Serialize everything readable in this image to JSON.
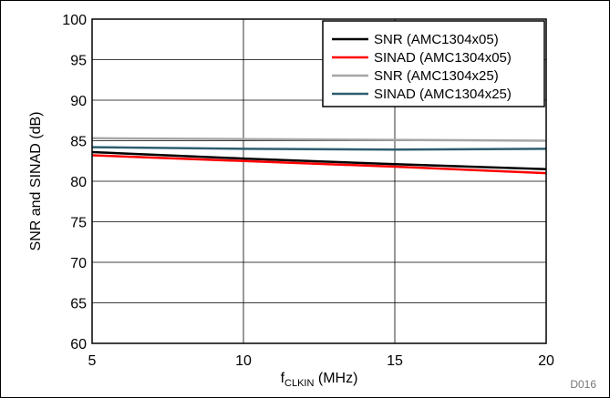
{
  "chart_data": {
    "type": "line",
    "xlabel_main": "f",
    "xlabel_sub": "CLKIN",
    "xlabel_unit": " (MHz)",
    "ylabel": "SNR and SINAD (dB)",
    "figure_id": "D016",
    "xlim": [
      5,
      20
    ],
    "ylim": [
      60,
      100
    ],
    "x_ticks": [
      5,
      10,
      15,
      20
    ],
    "y_ticks": [
      60,
      65,
      70,
      75,
      80,
      85,
      90,
      95,
      100
    ],
    "grid": true,
    "legend_position": "top-right",
    "series": [
      {
        "name": "SNR (AMC1304x05)",
        "color": "#000000",
        "x": [
          5,
          10,
          15,
          20
        ],
        "y": [
          83.6,
          82.8,
          82.1,
          81.5
        ]
      },
      {
        "name": "SINAD (AMC1304x05)",
        "color": "#ff0000",
        "x": [
          5,
          10,
          15,
          20
        ],
        "y": [
          83.2,
          82.5,
          81.8,
          81.0
        ]
      },
      {
        "name": "SNR (AMC1304x25)",
        "color": "#a6a6a6",
        "x": [
          5,
          10,
          15,
          20
        ],
        "y": [
          85.3,
          85.2,
          85.1,
          85.0
        ]
      },
      {
        "name": "SINAD (AMC1304x25)",
        "color": "#2e5e70",
        "x": [
          5,
          10,
          15,
          20
        ],
        "y": [
          84.2,
          84.0,
          83.9,
          84.0
        ]
      }
    ]
  }
}
